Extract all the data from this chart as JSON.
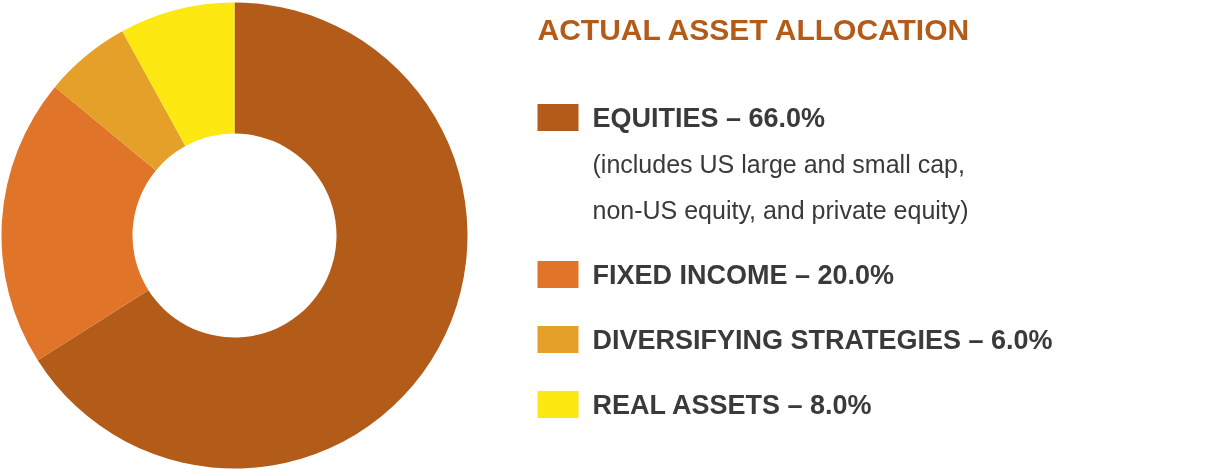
{
  "chart_data": {
    "type": "donut",
    "title": "ACTUAL ASSET ALLOCATION",
    "categories": [
      "EQUITIES",
      "FIXED INCOME",
      "DIVERSIFYING STRATEGIES",
      "REAL ASSETS"
    ],
    "values": [
      66.0,
      20.0,
      6.0,
      8.0
    ],
    "value_labels": [
      "66.0%",
      "20.0%",
      "6.0%",
      "8.0%"
    ],
    "colors": [
      "#b35c1a",
      "#e07428",
      "#e5a02a",
      "#fde812"
    ],
    "annotations": [
      "(includes US large and small cap,",
      "non-US equity, and private equity)"
    ],
    "legend": "right"
  }
}
